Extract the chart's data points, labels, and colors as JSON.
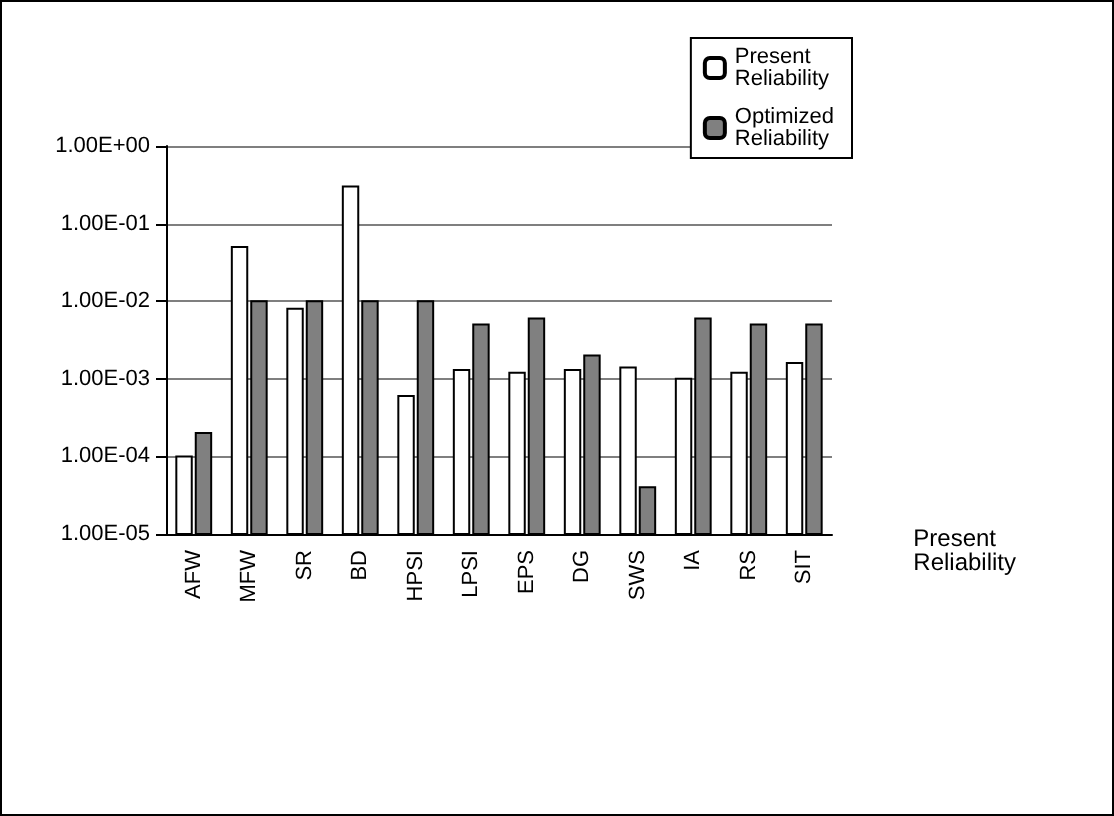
{
  "chart_data": {
    "type": "bar",
    "categories": [
      "AFW",
      "MFW",
      "SR",
      "BD",
      "HPSI",
      "LPSI",
      "EPS",
      "DG",
      "SWS",
      "IA",
      "RS",
      "SIT"
    ],
    "series": [
      {
        "name": "Present Reliability",
        "color": "#ffffff",
        "values": [
          0.0001,
          0.05,
          0.008,
          0.3,
          0.0006,
          0.0013,
          0.0012,
          0.0013,
          0.0014,
          0.001,
          0.0012,
          0.0016
        ]
      },
      {
        "name": "Optimized Reliability",
        "color": "#808080",
        "values": [
          0.0002,
          0.01,
          0.01,
          0.01,
          0.01,
          0.005,
          0.006,
          0.002,
          4e-05,
          0.006,
          0.005,
          0.005
        ]
      }
    ],
    "log": "y",
    "ylim": [
      1e-05,
      1
    ],
    "yticks": [
      {
        "value": 1e-05,
        "label": "1.00E-05"
      },
      {
        "value": 0.0001,
        "label": "1.00E-04"
      },
      {
        "value": 0.001,
        "label": "1.00E-03"
      },
      {
        "value": 0.01,
        "label": "1.00E-02"
      },
      {
        "value": 0.1,
        "label": "1.00E-01"
      },
      {
        "value": 1,
        "label": "1.00E+00"
      }
    ],
    "grid": "y",
    "legend": "top right",
    "annotations": [
      "Present Reliability"
    ]
  }
}
